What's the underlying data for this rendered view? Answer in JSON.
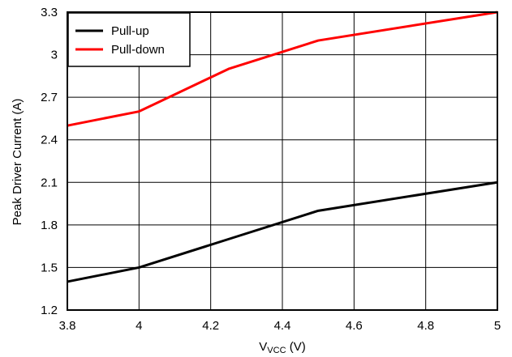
{
  "chart_data": {
    "type": "line",
    "title": "",
    "xlabel": {
      "main": "V",
      "sub": "VCC",
      "unit": " (V)"
    },
    "ylabel": "Peak Driver Current (A)",
    "xlim": [
      3.8,
      5
    ],
    "ylim": [
      1.2,
      3.3
    ],
    "x_ticks": [
      "3.8",
      "4",
      "4.2",
      "4.4",
      "4.6",
      "4.8",
      "5"
    ],
    "y_ticks": [
      "1.2",
      "1.5",
      "1.8",
      "2.1",
      "2.4",
      "2.7",
      "3",
      "3.3"
    ],
    "grid": true,
    "legend_position": "top-left",
    "series": [
      {
        "name": "Pull-up",
        "color": "#000000",
        "x": [
          3.8,
          4.0,
          4.25,
          4.5,
          5.0
        ],
        "y": [
          1.4,
          1.5,
          1.7,
          1.9,
          2.1
        ]
      },
      {
        "name": "Pull-down",
        "color": "#ff0000",
        "x": [
          3.8,
          4.0,
          4.25,
          4.5,
          5.0
        ],
        "y": [
          2.5,
          2.6,
          2.9,
          3.1,
          3.3
        ]
      }
    ]
  }
}
